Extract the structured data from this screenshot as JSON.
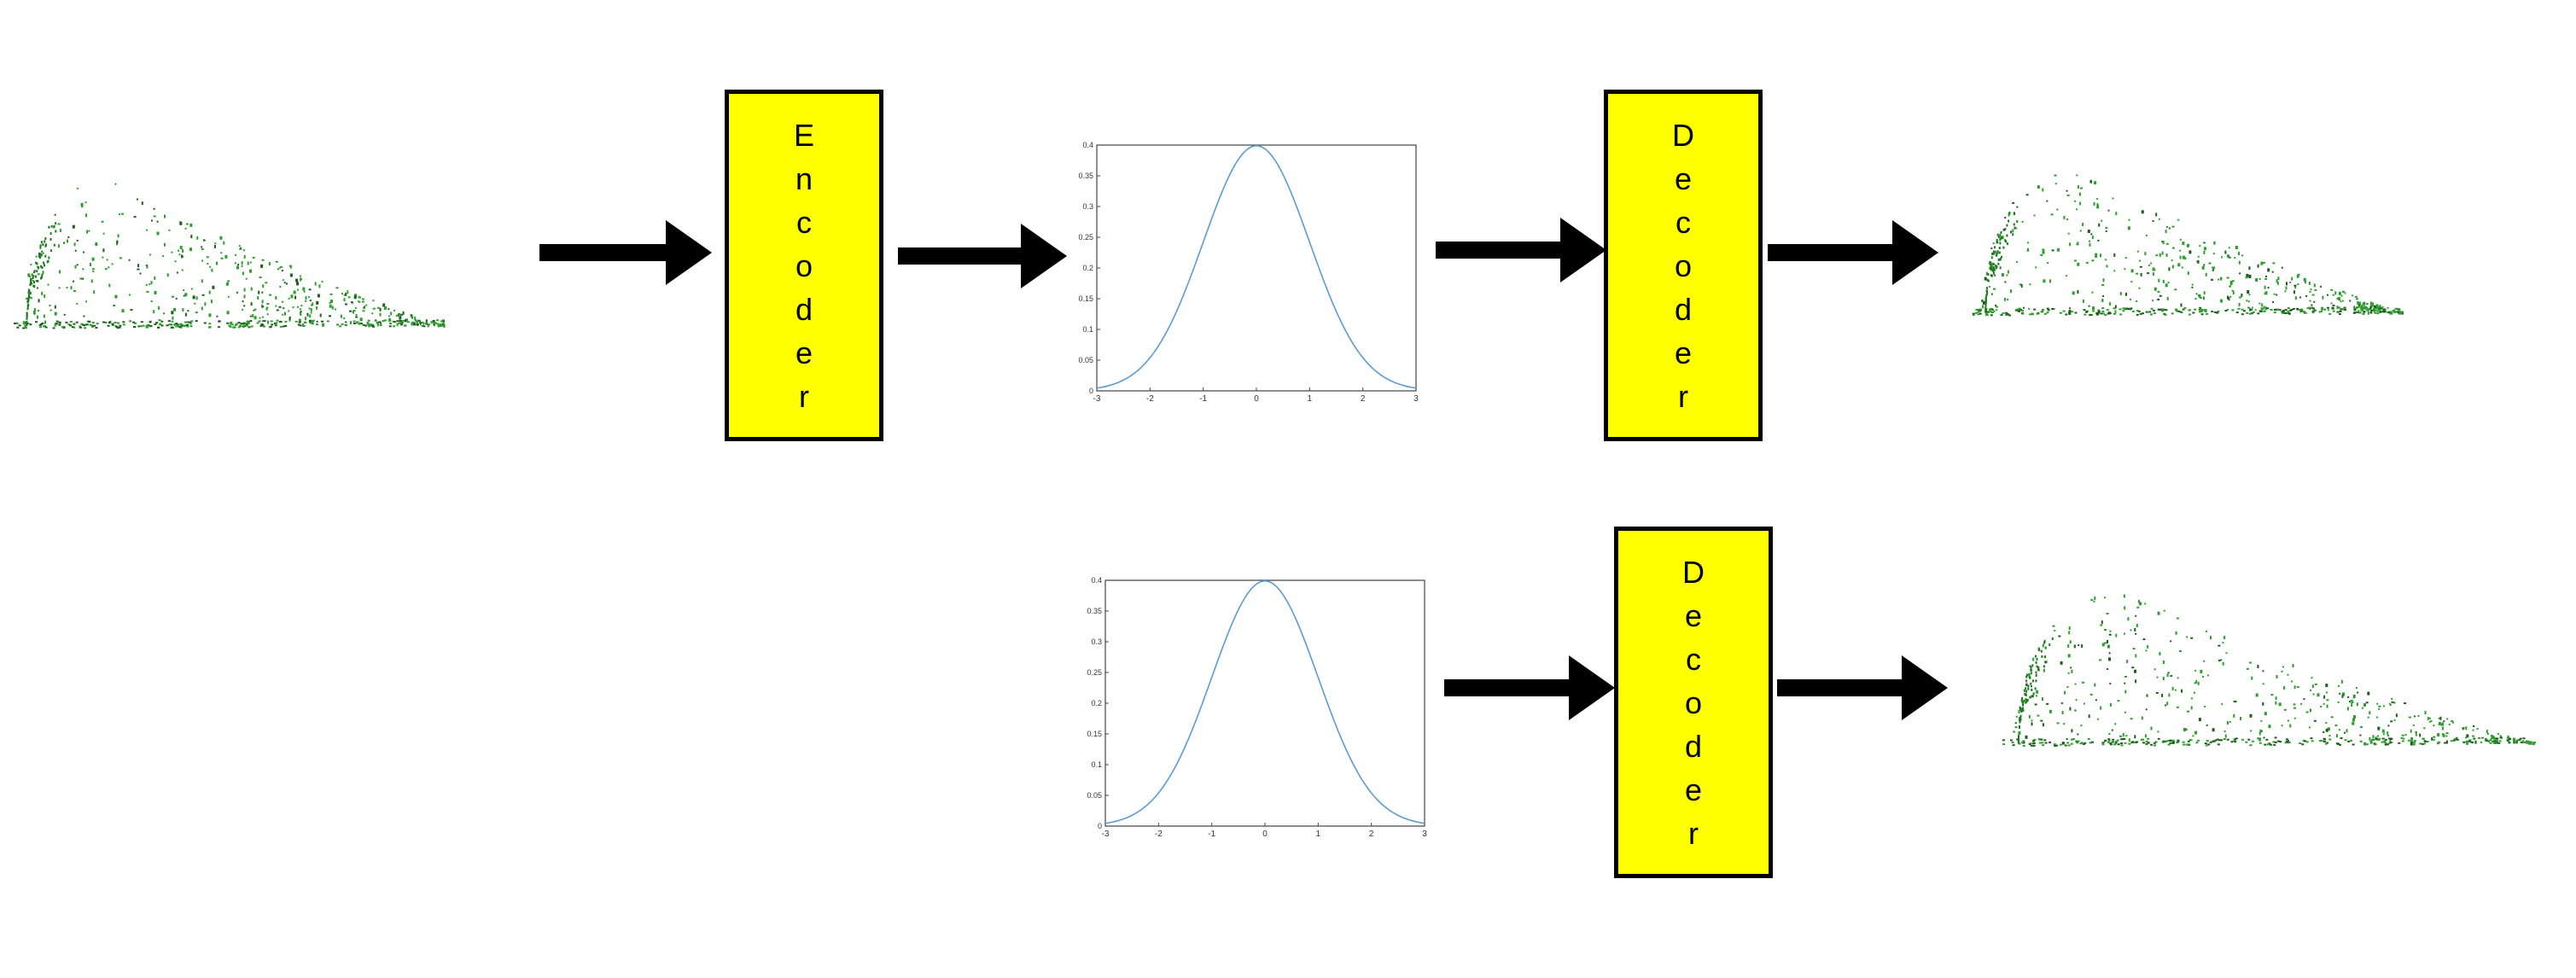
{
  "blocks": {
    "encoder": {
      "label": "Encoder"
    },
    "decoder_top": {
      "label": "Decoder"
    },
    "decoder_bottom": {
      "label": "Decoder"
    }
  },
  "latent_plot": {
    "x_ticks": [
      "-3",
      "-2",
      "-1",
      "0",
      "1",
      "2",
      "3"
    ],
    "y_ticks": [
      "0",
      "0.05",
      "0.1",
      "0.15",
      "0.2",
      "0.25",
      "0.3",
      "0.35",
      "0.4"
    ],
    "curve_color": "#5b9bd5"
  },
  "chart_data": {
    "type": "line",
    "x_range": [
      -3,
      3
    ],
    "y_range": [
      0,
      0.4
    ],
    "function": "standard normal pdf",
    "grid": false
  },
  "colors": {
    "block_fill": "#ffff00",
    "arrow": "#000000",
    "point_cloud": "#2e9e2e"
  }
}
